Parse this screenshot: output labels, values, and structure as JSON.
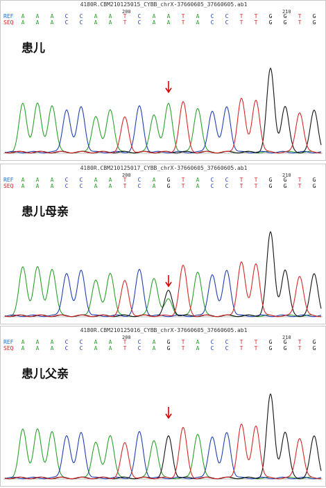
{
  "panels": [
    {
      "title": "4180R.CBM210125015_CYBB_chrX-37660605_37660605.ab1",
      "label": "患儿",
      "pos_labels": [
        "200",
        "210"
      ],
      "ref": [
        "A",
        "A",
        "A",
        "C",
        "C",
        "A",
        "A",
        "T",
        "C",
        "A",
        "A",
        "T",
        "A",
        "C",
        "C",
        "T",
        "T",
        "G",
        "G",
        "T",
        "G"
      ],
      "seq": [
        "A",
        "A",
        "A",
        "C",
        "C",
        "A",
        "A",
        "T",
        "C",
        "A",
        "A",
        "T",
        "A",
        "C",
        "C",
        "T",
        "T",
        "G",
        "G",
        "T",
        "G"
      ]
    },
    {
      "title": "4180R.CBM210125017_CYBB_chrX-37660605_37660605.ab1",
      "label": "患儿母亲",
      "pos_labels": [
        "200",
        "210"
      ],
      "ref": [
        "A",
        "A",
        "A",
        "C",
        "C",
        "A",
        "A",
        "T",
        "C",
        "A",
        "G",
        "T",
        "A",
        "C",
        "C",
        "T",
        "T",
        "G",
        "G",
        "T",
        "G"
      ],
      "seq": [
        "A",
        "A",
        "A",
        "C",
        "C",
        "A",
        "A",
        "T",
        "C",
        "A",
        "G",
        "T",
        "A",
        "C",
        "C",
        "T",
        "T",
        "G",
        "G",
        "T",
        "G"
      ]
    },
    {
      "title": "4180R.CBM210125016_CYBB_chrX-37660605_37660605.ab1",
      "label": "患儿父亲",
      "pos_labels": [
        "200",
        "210"
      ],
      "ref": [
        "A",
        "A",
        "A",
        "C",
        "C",
        "A",
        "A",
        "T",
        "C",
        "A",
        "G",
        "T",
        "A",
        "C",
        "C",
        "T",
        "T",
        "G",
        "G",
        "T",
        "G"
      ],
      "seq": [
        "A",
        "A",
        "A",
        "C",
        "C",
        "A",
        "A",
        "T",
        "C",
        "A",
        "G",
        "T",
        "A",
        "C",
        "C",
        "T",
        "T",
        "G",
        "G",
        "T",
        "G"
      ]
    }
  ],
  "row_labels": {
    "ref": "REF",
    "seq": "SEQ"
  },
  "colors": {
    "A": "#2ca02c",
    "C": "#1f3fb4",
    "G": "#111111",
    "T": "#d62728",
    "arrow": "#d40000"
  }
}
